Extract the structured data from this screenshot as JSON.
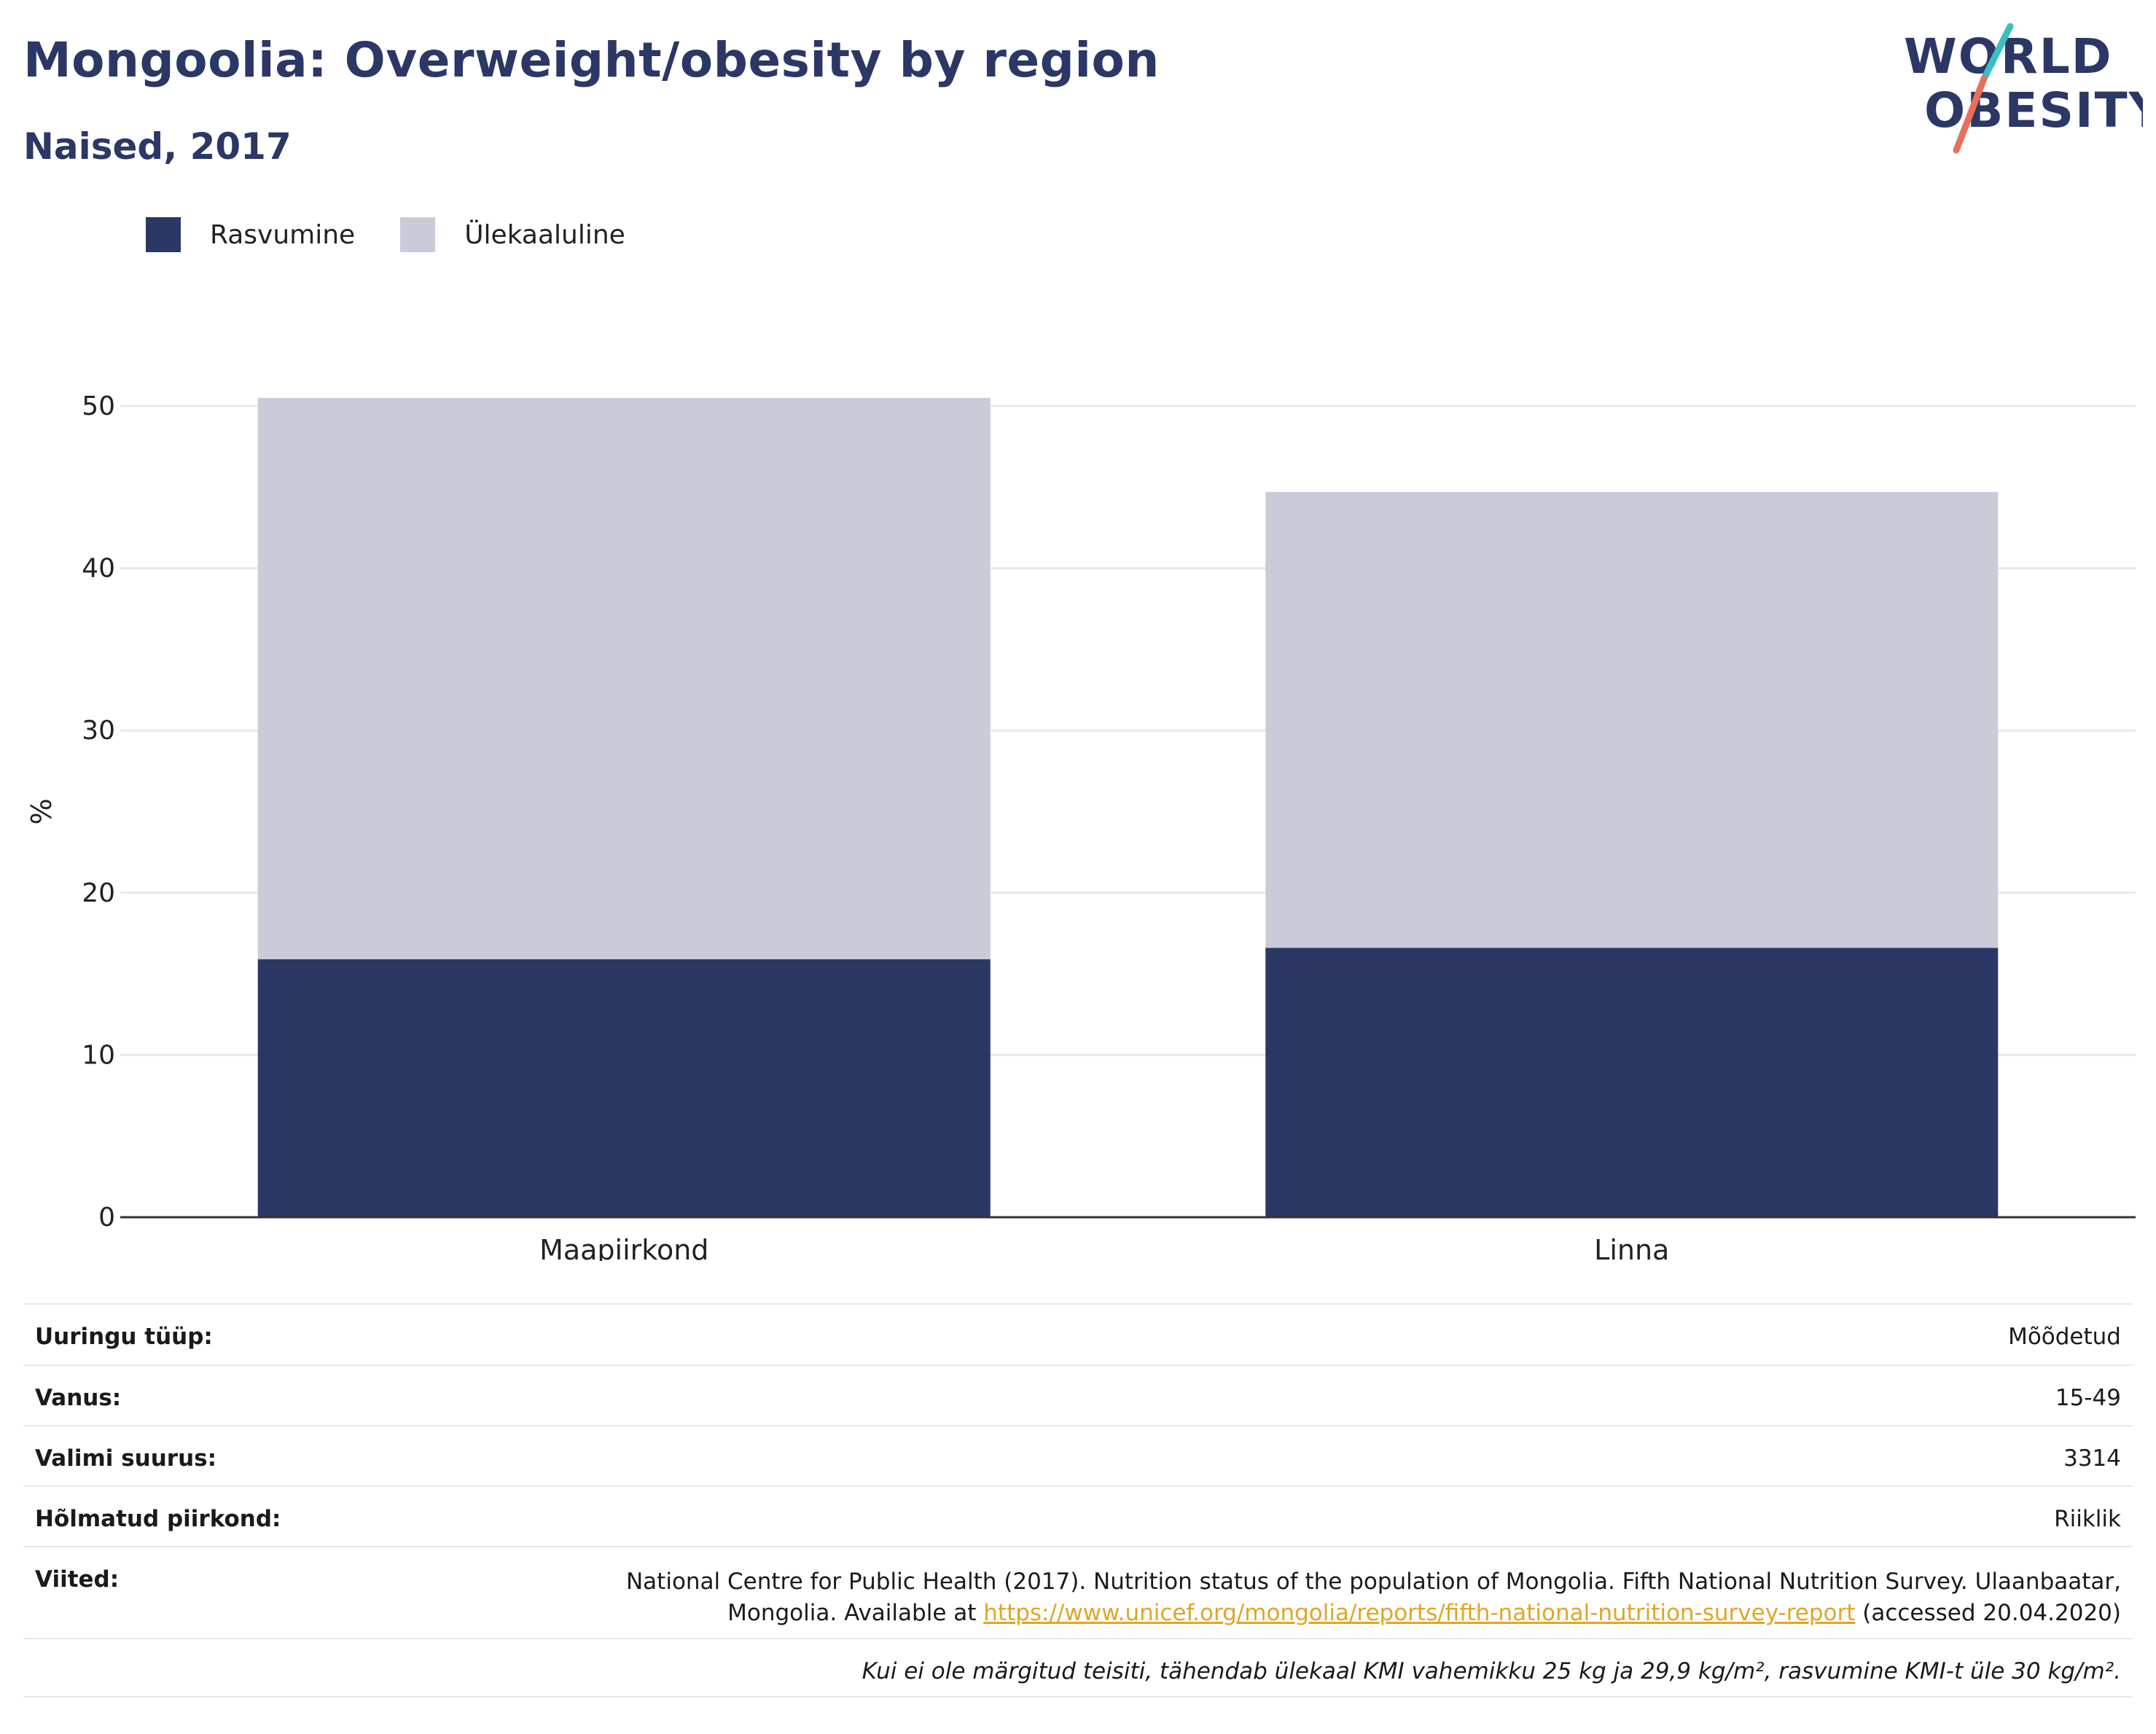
{
  "header": {
    "title": "Mongoolia: Overweight/obesity by region",
    "subtitle": "Naised, 2017"
  },
  "logo": {
    "line1": "WORLD",
    "line2": "OBESITY",
    "colors": {
      "text": "#2b3765",
      "slash_top": "#3bbfc2",
      "slash_bottom": "#e8705d"
    }
  },
  "legend": [
    {
      "label": "Rasvumine",
      "color": "#2b3765"
    },
    {
      "label": "Ülekaaluline",
      "color": "#c9ccd8"
    }
  ],
  "chart_data": {
    "type": "bar",
    "stacked": true,
    "categories": [
      "Maapiirkond",
      "Linna"
    ],
    "series": [
      {
        "name": "Rasvumine",
        "values": [
          15.9,
          16.6
        ],
        "color": "#2b3765"
      },
      {
        "name": "Ülekaaluline",
        "values": [
          34.6,
          28.1
        ],
        "color": "#c9ccd8"
      }
    ],
    "ylabel": "%",
    "ylim": [
      0,
      50
    ],
    "yticks": [
      0,
      10,
      20,
      30,
      40,
      50
    ],
    "grid": true,
    "legend_position": "top-left"
  },
  "info": {
    "rows": [
      {
        "label": "Uuringu tüüp:",
        "value": "Mõõdetud"
      },
      {
        "label": "Vanus:",
        "value": "15-49"
      },
      {
        "label": "Valimi suurus:",
        "value": "3314"
      },
      {
        "label": "Hõlmatud piirkond:",
        "value": "Riiklik"
      }
    ],
    "references": {
      "label": "Viited:",
      "text_line1": "National Centre for Public Health (2017). Nutrition status of the population of Mongolia. Fifth National Nutrition Survey. Ulaanbaatar,",
      "text_line2_prefix": "Mongolia. Available at ",
      "link": "https://www.unicef.org/mongolia/reports/fifth-national-nutrition-survey-report",
      "text_line2_suffix": " (accessed 20.04.2020)"
    },
    "note": "Kui ei ole märgitud teisiti, tähendab ülekaal KMI vahemikku 25 kg ja 29,9 kg/m², rasvumine KMI-t üle 30 kg/m²."
  }
}
